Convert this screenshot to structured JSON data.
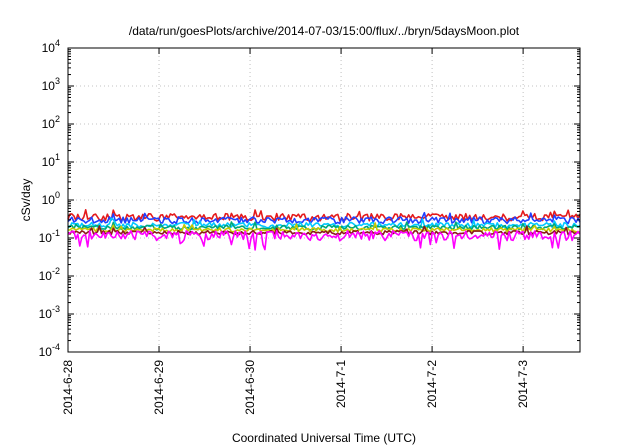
{
  "chart_data": {
    "type": "line",
    "title": "/data/run/goesPlots/archive/2014-07-03/15:00/flux/../bryn/5daysMoon.plot",
    "xlabel": "Coordinated Universal Time (UTC)",
    "ylabel": "cSv/day",
    "x_range": [
      "2014-06-28",
      "2014-07-03T15:00"
    ],
    "x_ticks": [
      "2014-6-28",
      "2014-6-29",
      "2014-6-30",
      "2014-7-1",
      "2014-7-2",
      "2014-7-3"
    ],
    "y_scale": "log",
    "ylim": [
      0.0001,
      10000
    ],
    "y_ticks": [
      {
        "base": "10",
        "exp": "-4"
      },
      {
        "base": "10",
        "exp": "-3"
      },
      {
        "base": "10",
        "exp": "-2"
      },
      {
        "base": "10",
        "exp": "-1"
      },
      {
        "base": "10",
        "exp": "0"
      },
      {
        "base": "10",
        "exp": "1"
      },
      {
        "base": "10",
        "exp": "2"
      },
      {
        "base": "10",
        "exp": "3"
      },
      {
        "base": "10",
        "exp": "4"
      }
    ],
    "grid": true,
    "legend": "none",
    "series": [
      {
        "color": "#e41a1c",
        "level": 0.36,
        "variation": 0.22
      },
      {
        "color": "#1f3fff",
        "level": 0.3,
        "variation": 0.2
      },
      {
        "color": "#00c8ff",
        "level": 0.22,
        "variation": 0.16
      },
      {
        "color": "#00a878",
        "level": 0.19,
        "variation": 0.14
      },
      {
        "color": "#c8c800",
        "level": 0.165,
        "variation": 0.12
      },
      {
        "color": "#8b1a1a",
        "level": 0.14,
        "variation": 0.12
      },
      {
        "color": "#ff00ff",
        "level": 0.12,
        "variation": 0.3
      }
    ]
  }
}
